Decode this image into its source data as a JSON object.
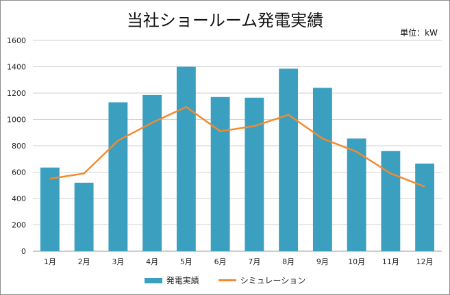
{
  "chart_data": {
    "type": "bar",
    "title": "当社ショールーム発電実績",
    "unit_label": "単位：kW",
    "categories": [
      "1月",
      "2月",
      "3月",
      "4月",
      "5月",
      "6月",
      "7月",
      "8月",
      "9月",
      "10月",
      "11月",
      "12月"
    ],
    "series": [
      {
        "name": "発電実績",
        "kind": "bar",
        "color": "#3b9fc0",
        "values": [
          635,
          520,
          1130,
          1185,
          1400,
          1170,
          1165,
          1385,
          1240,
          855,
          760,
          665
        ]
      },
      {
        "name": "シミュレーション",
        "kind": "line",
        "color": "#f28a30",
        "values": [
          550,
          590,
          840,
          975,
          1095,
          910,
          950,
          1035,
          855,
          755,
          590,
          490
        ]
      }
    ],
    "ylim": [
      0,
      1600
    ],
    "yticks": [
      0,
      200,
      400,
      600,
      800,
      1000,
      1200,
      1400,
      1600
    ],
    "grid": true,
    "legend": "bottom"
  }
}
